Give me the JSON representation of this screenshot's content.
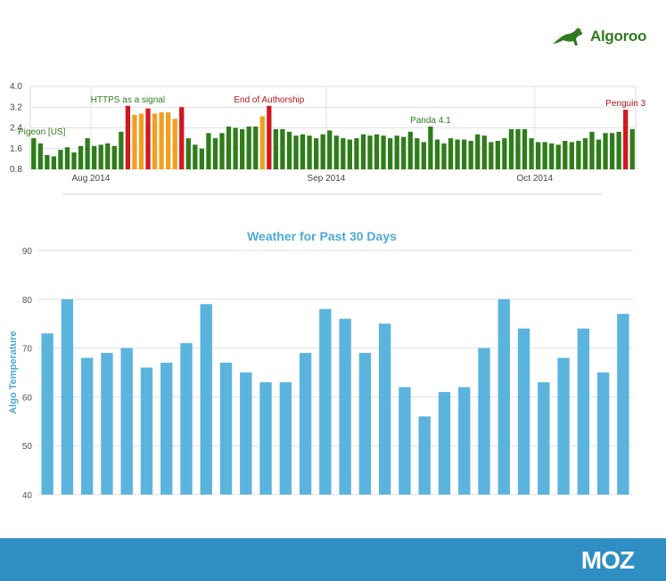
{
  "brand": {
    "algoroo": "Algoroo",
    "moz": "MOZ",
    "algoroo_color": "#2f7a1f",
    "footer_color": "#2f8ec3"
  },
  "chart_data": [
    {
      "type": "bar",
      "title": "",
      "xlabel": "",
      "ylabel": "",
      "ylim": [
        0.8,
        4.0
      ],
      "yticks": [
        "4.0",
        "3.2",
        "2.4",
        "1.6",
        "0.8"
      ],
      "xticks": [
        "Aug 2014",
        "Sep 2014",
        "Oct 2014"
      ],
      "colors": {
        "normal": "#2e7d1a",
        "high": "#d0181f",
        "elevated": "#f0a020"
      },
      "values": [
        2.0,
        1.8,
        1.35,
        1.3,
        1.55,
        1.65,
        1.45,
        1.7,
        2.0,
        1.7,
        1.75,
        1.8,
        1.7,
        2.25,
        3.25,
        2.9,
        2.95,
        3.15,
        2.95,
        3.0,
        3.0,
        2.75,
        3.2,
        2.0,
        1.75,
        1.6,
        2.2,
        2.0,
        2.2,
        2.45,
        2.4,
        2.35,
        2.45,
        2.45,
        2.85,
        3.25,
        2.35,
        2.35,
        2.25,
        2.1,
        2.15,
        2.1,
        2.0,
        2.15,
        2.3,
        2.1,
        2.0,
        1.95,
        2.0,
        2.15,
        2.1,
        2.15,
        2.1,
        2.0,
        2.1,
        2.05,
        2.25,
        2.0,
        1.85,
        2.45,
        1.95,
        1.8,
        2.0,
        1.95,
        1.95,
        1.9,
        2.15,
        2.1,
        1.85,
        1.9,
        2.0,
        2.35,
        2.35,
        2.35,
        2.0,
        1.85,
        1.85,
        1.8,
        1.75,
        1.9,
        1.85,
        1.9,
        2.0,
        2.25,
        1.95,
        2.2,
        2.2,
        2.25,
        3.1,
        2.35
      ],
      "categories_level": [
        "normal",
        "normal",
        "normal",
        "normal",
        "normal",
        "normal",
        "normal",
        "normal",
        "normal",
        "normal",
        "normal",
        "normal",
        "normal",
        "normal",
        "high",
        "elevated",
        "elevated",
        "high",
        "elevated",
        "elevated",
        "elevated",
        "elevated",
        "high",
        "normal",
        "normal",
        "normal",
        "normal",
        "normal",
        "normal",
        "normal",
        "normal",
        "normal",
        "normal",
        "normal",
        "elevated",
        "high",
        "normal",
        "normal",
        "normal",
        "normal",
        "normal",
        "normal",
        "normal",
        "normal",
        "normal",
        "normal",
        "normal",
        "normal",
        "normal",
        "normal",
        "normal",
        "normal",
        "normal",
        "normal",
        "normal",
        "normal",
        "normal",
        "normal",
        "normal",
        "normal",
        "normal",
        "normal",
        "normal",
        "normal",
        "normal",
        "normal",
        "normal",
        "normal",
        "normal",
        "normal",
        "normal",
        "normal",
        "normal",
        "normal",
        "normal",
        "normal",
        "normal",
        "normal",
        "normal",
        "normal",
        "normal",
        "normal",
        "normal",
        "normal",
        "normal",
        "normal",
        "normal",
        "normal",
        "high",
        "normal"
      ],
      "annotations": [
        {
          "text": "Pigeon [US]",
          "bar": 0,
          "color": "#2e7d1a"
        },
        {
          "text": "HTTPS as a signal",
          "bar": 14,
          "color": "#2e7d1a"
        },
        {
          "text": "End of Authorship",
          "bar": 35,
          "color": "#b0181f"
        },
        {
          "text": "Panda 4.1",
          "bar": 59,
          "color": "#2e7d1a"
        },
        {
          "text": "Penguin 3",
          "bar": 88,
          "color": "#b0181f"
        }
      ],
      "grid": true
    },
    {
      "type": "bar",
      "title": "Weather for Past 30 Days",
      "xlabel": "",
      "ylabel": "Algo Temperature",
      "ylim": [
        40,
        90
      ],
      "yticks": [
        "90",
        "80",
        "70",
        "60",
        "50",
        "40"
      ],
      "color": "#5bb4dd",
      "values": [
        73,
        80,
        68,
        69,
        70,
        66,
        67,
        71,
        79,
        67,
        65,
        63,
        63,
        69,
        78,
        76,
        69,
        75,
        62,
        56,
        61,
        62,
        70,
        80,
        74,
        63,
        68,
        74,
        65,
        77
      ],
      "grid": true
    }
  ]
}
